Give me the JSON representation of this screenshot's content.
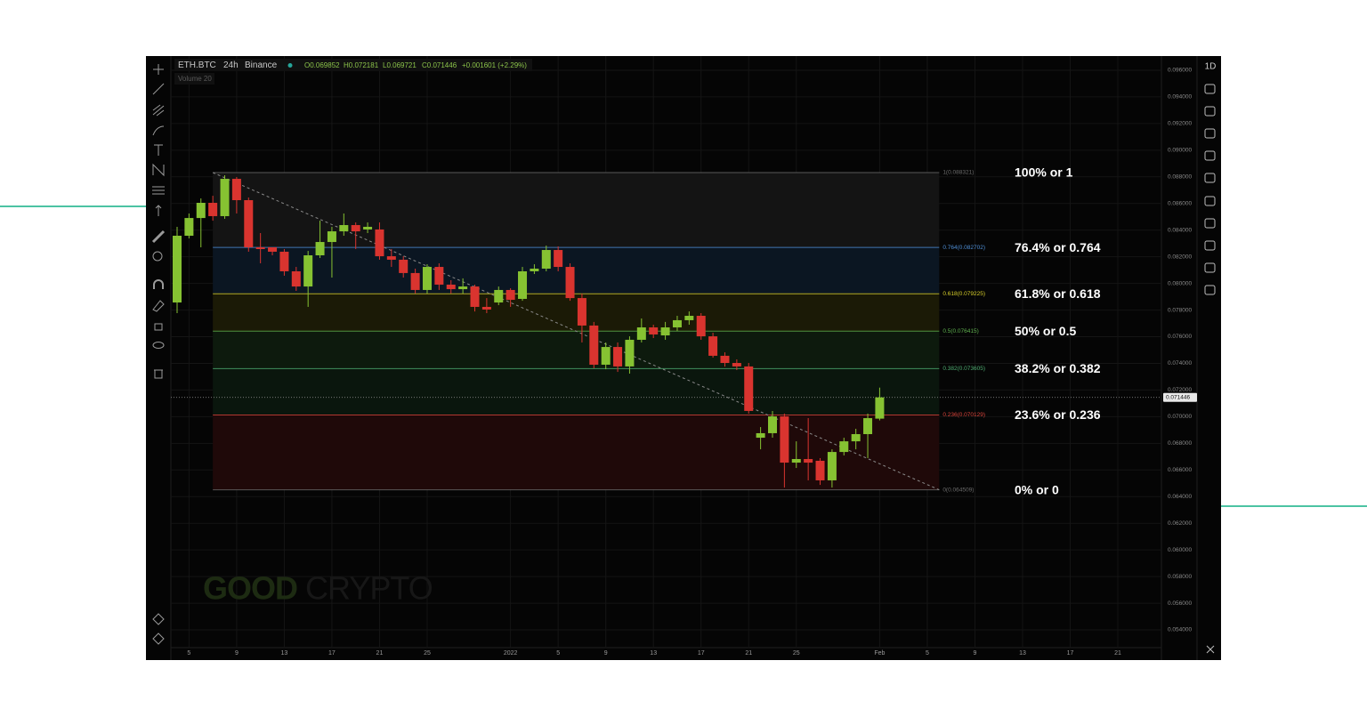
{
  "chart_data": {
    "type": "candlestick",
    "symbol": "ETH.BTC",
    "interval": "24h",
    "exchange": "Binance",
    "ohlc_header": [
      "O0.069852",
      "H0.072181",
      "L0.069721",
      "C0.071446",
      "+0.001601 (+2.29%)"
    ],
    "volume_label": "Volume 20",
    "watermark": [
      "GOOD",
      "CRYPTO"
    ],
    "up_color": "#86c232",
    "down_color": "#d9342f",
    "grid": true,
    "categories": [
      null,
      "5",
      null,
      null,
      null,
      "9",
      null,
      null,
      null,
      "13",
      null,
      null,
      null,
      "17",
      null,
      null,
      null,
      "21",
      null,
      null,
      null,
      "25",
      null,
      null,
      null,
      null,
      null,
      null,
      "2022",
      null,
      null,
      null,
      "5",
      null,
      null,
      null,
      "9",
      null,
      null,
      null,
      "13",
      null,
      null,
      null,
      "17",
      null,
      null,
      null,
      "21",
      null,
      null,
      null,
      "25",
      null,
      null,
      null,
      null,
      null,
      null,
      "Feb",
      null,
      null,
      null,
      "5",
      null,
      null,
      null,
      "9",
      null,
      null,
      null,
      "13",
      null,
      null,
      null,
      "17",
      null,
      null,
      null,
      "21"
    ],
    "open": [
      0.07857,
      0.08358,
      0.08491,
      0.08605,
      0.08505,
      0.08785,
      0.08625,
      0.08271,
      0.08271,
      0.08238,
      0.08091,
      0.07977,
      0.08211,
      0.08311,
      0.08391,
      0.08438,
      0.08405,
      0.08405,
      0.08204,
      0.08178,
      0.08078,
      0.07951,
      0.08124,
      0.07991,
      0.07957,
      0.07977,
      0.07824,
      0.07857,
      0.07951,
      0.07884,
      0.08091,
      0.08111,
      0.08251,
      0.08124,
      0.0789,
      0.07684,
      0.0739,
      0.07523,
      0.07377,
      0.07577,
      0.0767,
      0.0761,
      0.0767,
      0.07724,
      0.07757,
      0.07603,
      0.07457,
      0.07403,
      0.07377,
      0.06842,
      0.06876,
      0.07002,
      0.06655,
      0.06682,
      0.06669,
      0.06522,
      0.06735,
      0.06815,
      0.06869,
      0.069852,
      null,
      null,
      null,
      null,
      null,
      null,
      null,
      null,
      null,
      null,
      null,
      null,
      null,
      null,
      null,
      null,
      null,
      null,
      null,
      null
    ],
    "high": [
      0.08425,
      0.08525,
      0.08638,
      0.08658,
      0.08812,
      0.08799,
      0.08645,
      0.08378,
      0.08271,
      0.08258,
      0.08124,
      0.08244,
      0.08471,
      0.08425,
      0.08525,
      0.08458,
      0.08458,
      0.08458,
      0.08258,
      0.08204,
      0.08111,
      0.08144,
      0.08151,
      0.08024,
      0.08038,
      0.07991,
      0.0789,
      0.07977,
      0.07964,
      0.08124,
      0.08144,
      0.08284,
      0.08278,
      0.08151,
      0.07924,
      0.07711,
      0.07557,
      0.07557,
      0.07603,
      0.07737,
      0.0769,
      0.07711,
      0.07757,
      0.0779,
      0.07777,
      0.0763,
      0.07483,
      0.0743,
      0.07403,
      0.06922,
      0.07043,
      0.07023,
      0.06815,
      0.06989,
      0.06689,
      0.06755,
      0.06842,
      0.06909,
      0.07023,
      0.072181,
      null,
      null,
      null,
      null,
      null,
      null,
      null,
      null,
      null,
      null,
      null,
      null,
      null,
      null,
      null,
      null,
      null,
      null,
      null,
      null
    ],
    "low": [
      0.07777,
      0.08338,
      0.08271,
      0.08471,
      0.08485,
      0.08525,
      0.08238,
      0.08151,
      0.08211,
      0.08058,
      0.07944,
      0.07824,
      0.08191,
      0.08044,
      0.08358,
      0.08258,
      0.08378,
      0.08178,
      0.08124,
      0.08044,
      0.07924,
      0.07924,
      0.07951,
      0.07924,
      0.07924,
      0.0779,
      0.07777,
      0.07837,
      0.07824,
      0.0787,
      0.08071,
      0.08091,
      0.08091,
      0.0787,
      0.07557,
      0.07363,
      0.07356,
      0.07336,
      0.07323,
      0.07557,
      0.0759,
      0.07577,
      0.07643,
      0.0769,
      0.07577,
      0.07443,
      0.07376,
      0.0735,
      0.07023,
      0.06755,
      0.06842,
      0.06468,
      0.06615,
      0.06522,
      0.06488,
      0.06468,
      0.06709,
      0.06755,
      0.06689,
      0.069721,
      null,
      null,
      null,
      null,
      null,
      null,
      null,
      null,
      null,
      null,
      null,
      null,
      null,
      null,
      null,
      null,
      null,
      null,
      null,
      null
    ],
    "close": [
      0.08358,
      0.08491,
      0.08605,
      0.08505,
      0.08785,
      0.08625,
      0.08271,
      0.08258,
      0.08238,
      0.08091,
      0.07977,
      0.08211,
      0.08311,
      0.08391,
      0.08438,
      0.08391,
      0.08425,
      0.08204,
      0.08178,
      0.08078,
      0.07951,
      0.08124,
      0.07991,
      0.07957,
      0.07977,
      0.07824,
      0.07804,
      0.07951,
      0.07877,
      0.08091,
      0.08111,
      0.08251,
      0.08124,
      0.0789,
      0.07684,
      0.0739,
      0.07523,
      0.07377,
      0.07577,
      0.0767,
      0.07617,
      0.0767,
      0.07724,
      0.07757,
      0.07603,
      0.07457,
      0.07403,
      0.07377,
      0.07043,
      0.06876,
      0.07002,
      0.06655,
      0.06682,
      0.06655,
      0.06522,
      0.06735,
      0.06815,
      0.06869,
      0.06989,
      0.071446,
      null,
      null,
      null,
      null,
      null,
      null,
      null,
      null,
      null,
      null,
      null,
      null,
      null,
      null,
      null,
      null,
      null,
      null,
      null,
      null
    ],
    "last_price": 0.071446,
    "ylim": [
      0.053,
      0.097
    ],
    "yticks": [
      {
        "value": 0.054,
        "label": "0.054000"
      },
      {
        "value": 0.056,
        "label": "0.056000"
      },
      {
        "value": 0.058,
        "label": "0.058000"
      },
      {
        "value": 0.06,
        "label": "0.060000"
      },
      {
        "value": 0.062,
        "label": "0.062000"
      },
      {
        "value": 0.064,
        "label": "0.064000"
      },
      {
        "value": 0.066,
        "label": "0.066000"
      },
      {
        "value": 0.068,
        "label": "0.068000"
      },
      {
        "value": 0.07,
        "label": "0.070000"
      },
      {
        "value": 0.072,
        "label": "0.072000"
      },
      {
        "value": 0.074,
        "label": "0.074000"
      },
      {
        "value": 0.076,
        "label": "0.076000"
      },
      {
        "value": 0.078,
        "label": "0.078000"
      },
      {
        "value": 0.08,
        "label": "0.080000"
      },
      {
        "value": 0.082,
        "label": "0.082000"
      },
      {
        "value": 0.084,
        "label": "0.084000"
      },
      {
        "value": 0.086,
        "label": "0.086000"
      },
      {
        "value": 0.088,
        "label": "0.088000"
      },
      {
        "value": 0.09,
        "label": "0.090000"
      },
      {
        "value": 0.092,
        "label": "0.092000"
      },
      {
        "value": 0.094,
        "label": "0.094000"
      },
      {
        "value": 0.096,
        "label": "0.096000"
      }
    ],
    "fib_levels": [
      {
        "label": "1(0.088321)",
        "value": 0.088321,
        "annotation": "100% or 1",
        "color": "#6b6b6b",
        "fill": "#141414"
      },
      {
        "label": "0.764(0.082702)",
        "value": 0.082702,
        "annotation": "76.4% or 0.764",
        "color": "#4f8fd6",
        "fill": "#0b1622"
      },
      {
        "label": "0.618(0.079225)",
        "value": 0.079225,
        "annotation": "61.8% or 0.618",
        "color": "#d8cf2a",
        "fill": "#1b1a06"
      },
      {
        "label": "0.5(0.076415)",
        "value": 0.076415,
        "annotation": "50% or 0.5",
        "color": "#5fb04f",
        "fill": "#0d1a0d"
      },
      {
        "label": "0.382(0.073605)",
        "value": 0.073605,
        "annotation": "38.2% or 0.382",
        "color": "#4fae72",
        "fill": "#0a160d"
      },
      {
        "label": "0.236(0.070129)",
        "value": 0.070129,
        "annotation": "23.6% or 0.236",
        "color": "#d9443b",
        "fill": "#1f0909"
      },
      {
        "label": "0(0.064509)",
        "value": 0.064509,
        "annotation": "0% or 0",
        "color": "#6b6b6b"
      }
    ]
  },
  "toolbar": {
    "interval": "1D"
  }
}
